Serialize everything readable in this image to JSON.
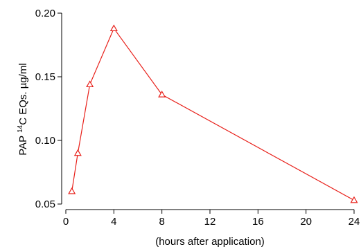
{
  "chart_data": {
    "type": "line",
    "title": "",
    "xlabel": "(hours after application)",
    "ylabel_prefix": "PAP ",
    "ylabel_superscript": "14",
    "ylabel_suffix": "C EQs. µg/ml",
    "xlim": [
      0,
      24
    ],
    "ylim": [
      0.05,
      0.2
    ],
    "x_ticks": [
      0,
      4,
      8,
      12,
      16,
      20,
      24
    ],
    "x_tick_labels": [
      "0",
      "4",
      "8",
      "12",
      "16",
      "20",
      "24"
    ],
    "y_ticks": [
      0.05,
      0.1,
      0.15,
      0.2
    ],
    "y_tick_labels": [
      "0.05",
      "0.10",
      "0.15",
      "0.20"
    ],
    "grid": false,
    "legend": "none",
    "marker": "open-triangle",
    "color": "#e8201a",
    "series": [
      {
        "x": [
          0.5,
          1,
          2,
          4,
          8,
          24
        ],
        "y": [
          0.06,
          0.09,
          0.144,
          0.188,
          0.136,
          0.053
        ]
      }
    ]
  }
}
